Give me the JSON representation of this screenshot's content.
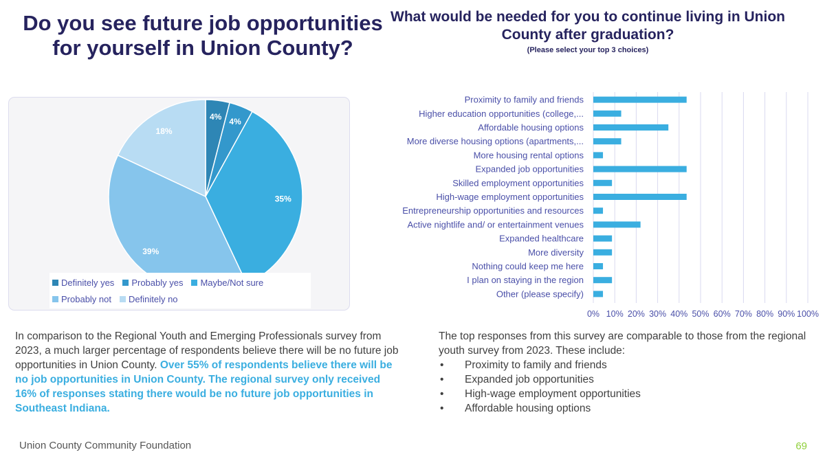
{
  "left_title": "Do you see future job opportunities for yourself in Union County?",
  "right_title": "What would be needed for you to continue living in Union County after graduation?",
  "right_subtitle": "(Please select your top 3 choices)",
  "colors": {
    "title": "#26235e",
    "bar": "#3aaee0",
    "highlight": "#3aaee0",
    "axis_text": "#4a4fa8",
    "footer_page": "#8fcf3a"
  },
  "chart_data": [
    {
      "type": "pie",
      "slices": [
        {
          "label": "Definitely yes",
          "value": 4,
          "display": "4%",
          "color": "#2e86b5"
        },
        {
          "label": "Probably yes",
          "value": 4,
          "display": "4%",
          "color": "#3398cc"
        },
        {
          "label": "Maybe/Not sure",
          "value": 35,
          "display": "35%",
          "color": "#3aaee0"
        },
        {
          "label": "Probably not",
          "value": 39,
          "display": "39%",
          "color": "#86c5ec"
        },
        {
          "label": "Definitely no",
          "value": 18,
          "display": "18%",
          "color": "#b8dcf3"
        }
      ],
      "legend_position": "bottom"
    },
    {
      "type": "bar",
      "orientation": "horizontal",
      "categories": [
        "Proximity to family and friends",
        "Higher education opportunities (college,...",
        "Affordable housing options",
        "More diverse housing options (apartments,...",
        "More housing rental options",
        "Expanded job opportunities",
        "Skilled employment opportunities",
        "High-wage employment opportunities",
        "Entrepreneurship opportunities and resources",
        "Active nightlife and/ or entertainment venues",
        "Expanded healthcare",
        "More diversity",
        "Nothing could keep me here",
        "I plan on staying in the region",
        "Other (please specify)"
      ],
      "values": [
        43.5,
        13,
        35,
        13,
        4.5,
        43.5,
        8.7,
        43.5,
        4.5,
        22,
        8.7,
        8.7,
        4.5,
        8.7,
        4.5
      ],
      "xlim": [
        0,
        100
      ],
      "x_ticks": [
        "0%",
        "10%",
        "20%",
        "30%",
        "40%",
        "50%",
        "60%",
        "70%",
        "80%",
        "90%",
        "100%"
      ],
      "grid": "vertical",
      "legend": "none"
    }
  ],
  "left_paragraph": {
    "plain": "In comparison to the Regional Youth and Emerging Professionals survey from 2023, a much larger percentage of respondents believe there will be no future job opportunities in Union County.",
    "highlight": "Over 55% of respondents believe there will be no job opportunities in Union County. The regional survey only received 16% of responses stating there would be no future job opportunities in Southeast Indiana."
  },
  "right_paragraph": {
    "intro": "The top responses from this survey are comparable to those from the regional youth survey from 2023. These include:",
    "bullet": "•",
    "items": [
      "Proximity to family and friends",
      "Expanded job opportunities",
      "High-wage employment opportunities",
      "Affordable housing options"
    ]
  },
  "footer": {
    "org": "Union County Community Foundation",
    "page": "69"
  }
}
